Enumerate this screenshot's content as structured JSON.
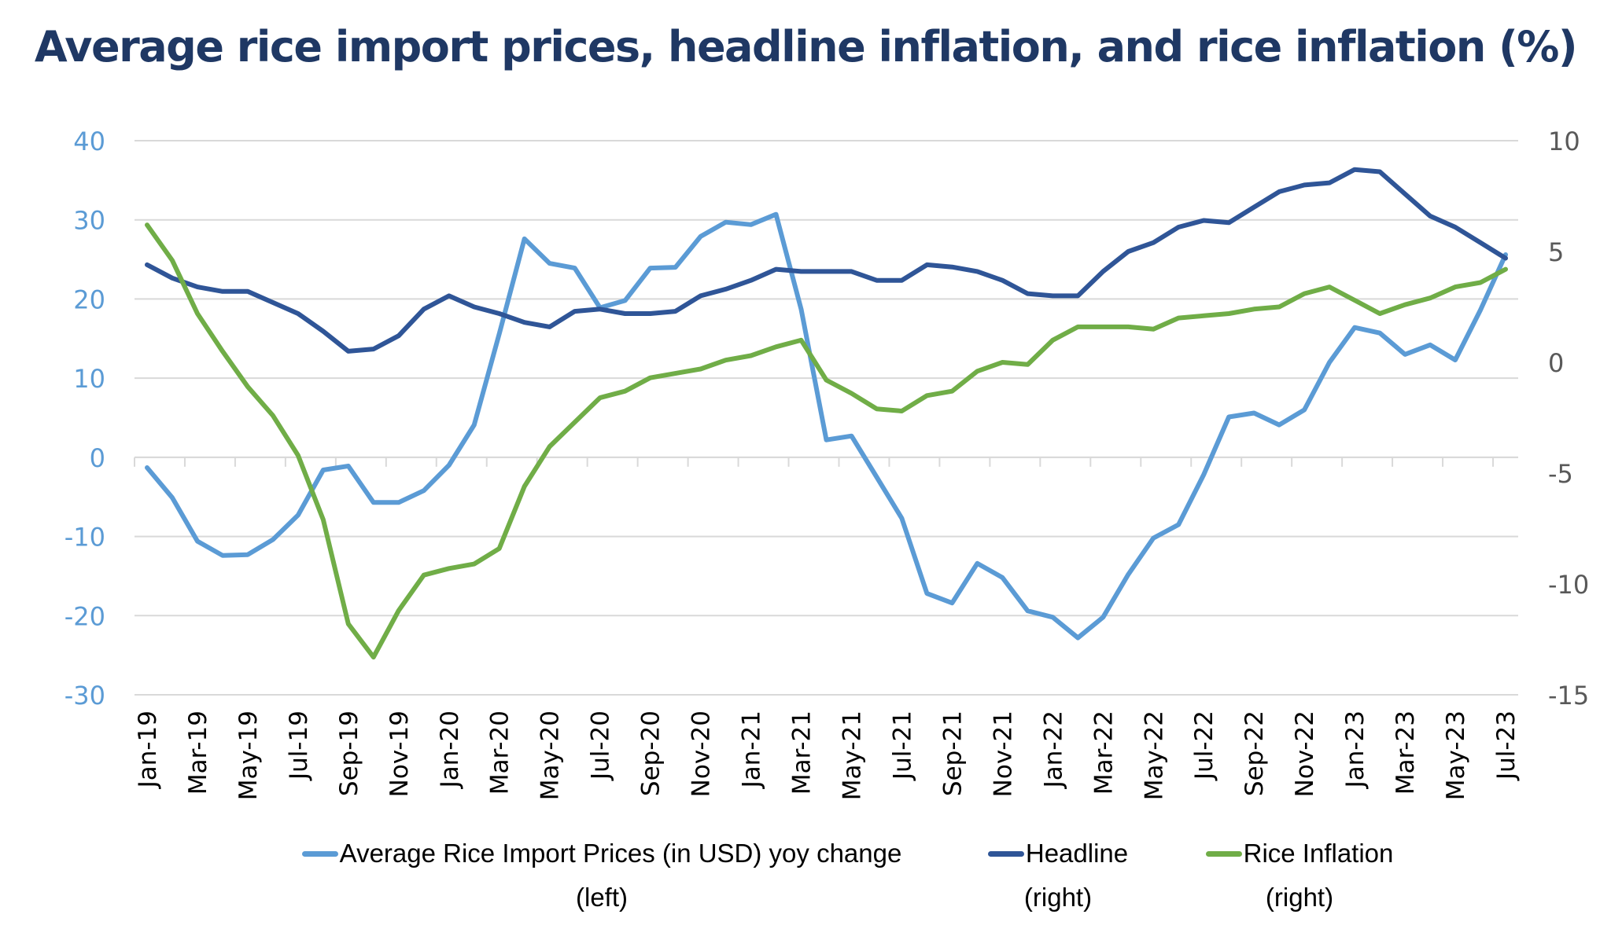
{
  "title": "Average rice import prices, headline inflation, and rice inflation (%)",
  "colors": {
    "title": "#1f3864",
    "import_prices": "#5b9bd5",
    "headline": "#2f5597",
    "rice_inflation": "#70ad47",
    "grid": "#d9d9d9",
    "left_axis_text": "#5b9bd5",
    "right_axis_text": "#595959"
  },
  "legend": [
    {
      "line1": "Average Rice Import Prices (in USD) yoy change",
      "line2": "(left)",
      "color": "#5b9bd5"
    },
    {
      "line1": "Headline",
      "line2": "(right)",
      "color": "#2f5597"
    },
    {
      "line1": "Rice Inflation",
      "line2": "(right)",
      "color": "#70ad47"
    }
  ],
  "chart_data": {
    "type": "line",
    "title": "Average rice import prices, headline inflation, and rice inflation (%)",
    "xlabel": "",
    "ylabel_left": "",
    "ylabel_right": "",
    "ylim_left": [
      -30,
      40
    ],
    "ylim_right": [
      -15,
      10
    ],
    "yticks_left": [
      40,
      30,
      20,
      10,
      0,
      -10,
      -20,
      -30
    ],
    "yticks_right": [
      10,
      5,
      0,
      -5,
      -10,
      -15
    ],
    "grid": true,
    "legend_position": "bottom",
    "x": [
      "Jan-19",
      "Feb-19",
      "Mar-19",
      "Apr-19",
      "May-19",
      "Jun-19",
      "Jul-19",
      "Aug-19",
      "Sep-19",
      "Oct-19",
      "Nov-19",
      "Dec-19",
      "Jan-20",
      "Feb-20",
      "Mar-20",
      "Apr-20",
      "May-20",
      "Jun-20",
      "Jul-20",
      "Aug-20",
      "Sep-20",
      "Oct-20",
      "Nov-20",
      "Dec-20",
      "Jan-21",
      "Feb-21",
      "Mar-21",
      "Apr-21",
      "May-21",
      "Jun-21",
      "Jul-21",
      "Aug-21",
      "Sep-21",
      "Oct-21",
      "Nov-21",
      "Dec-21",
      "Jan-22",
      "Feb-22",
      "Mar-22",
      "Apr-22",
      "May-22",
      "Jun-22",
      "Jul-22",
      "Aug-22",
      "Sep-22",
      "Oct-22",
      "Nov-22",
      "Dec-22",
      "Jan-23",
      "Feb-23",
      "Mar-23",
      "Apr-23",
      "May-23",
      "Jun-23",
      "Jul-23"
    ],
    "x_tick_labels": [
      "Jan-19",
      "Mar-19",
      "May-19",
      "Jul-19",
      "Sep-19",
      "Nov-19",
      "Jan-20",
      "Mar-20",
      "May-20",
      "Jul-20",
      "Sep-20",
      "Nov-20",
      "Jan-21",
      "Mar-21",
      "May-21",
      "Jul-21",
      "Sep-21",
      "Nov-21",
      "Jan-22",
      "Mar-22",
      "May-22",
      "Jul-22",
      "Sep-22",
      "Nov-22",
      "Jan-23",
      "Mar-23",
      "May-23",
      "Jul-23"
    ],
    "series": [
      {
        "name": "Average Rice Import Prices (in USD) yoy change (left)",
        "axis": "left",
        "color": "#5b9bd5",
        "values": [
          -1.3,
          -5.1,
          -10.6,
          -12.4,
          -12.3,
          -10.4,
          -7.3,
          -1.6,
          -1.1,
          -5.7,
          -5.7,
          -4.2,
          -1.0,
          4.1,
          15.6,
          27.6,
          24.5,
          23.9,
          18.9,
          19.8,
          23.9,
          24.0,
          27.9,
          29.7,
          29.4,
          30.7,
          18.7,
          2.2,
          2.7,
          -2.5,
          -7.7,
          -17.2,
          -18.4,
          -13.4,
          -15.2,
          -19.4,
          -20.2,
          -22.8,
          -20.2,
          -14.8,
          -10.2,
          -8.5,
          -2.2,
          5.1,
          5.6,
          4.1,
          6.0,
          12.0,
          16.4,
          15.7,
          13.0,
          14.2,
          12.3,
          18.6,
          25.6
        ]
      },
      {
        "name": "Headline (right)",
        "axis": "right",
        "color": "#2f5597",
        "values": [
          4.4,
          3.8,
          3.4,
          3.2,
          3.2,
          2.7,
          2.2,
          1.4,
          0.5,
          0.6,
          1.2,
          2.4,
          3.0,
          2.5,
          2.2,
          1.8,
          1.6,
          2.3,
          2.4,
          2.2,
          2.2,
          2.3,
          3.0,
          3.3,
          3.7,
          4.2,
          4.1,
          4.1,
          4.1,
          3.7,
          3.7,
          4.4,
          4.3,
          4.1,
          3.7,
          3.1,
          3.0,
          3.0,
          4.1,
          5.0,
          5.4,
          6.1,
          6.4,
          6.3,
          7.0,
          7.7,
          8.0,
          8.1,
          8.7,
          8.6,
          7.6,
          6.6,
          6.1,
          5.4,
          4.7
        ]
      },
      {
        "name": "Rice Inflation (right)",
        "axis": "right",
        "color": "#70ad47",
        "values": [
          6.2,
          4.6,
          2.2,
          0.5,
          -1.1,
          -2.4,
          -4.2,
          -7.1,
          -11.8,
          -13.3,
          -11.2,
          -9.6,
          -9.3,
          -9.1,
          -8.4,
          -5.6,
          -3.8,
          -2.7,
          -1.6,
          -1.3,
          -0.7,
          -0.5,
          -0.3,
          0.1,
          0.3,
          0.7,
          1.0,
          -0.8,
          -1.4,
          -2.1,
          -2.2,
          -1.5,
          -1.3,
          -0.4,
          0.0,
          -0.1,
          1.0,
          1.6,
          1.6,
          1.6,
          1.5,
          2.0,
          2.1,
          2.2,
          2.4,
          2.5,
          3.1,
          3.4,
          2.8,
          2.2,
          2.6,
          2.9,
          3.4,
          3.6,
          4.2
        ]
      }
    ]
  }
}
